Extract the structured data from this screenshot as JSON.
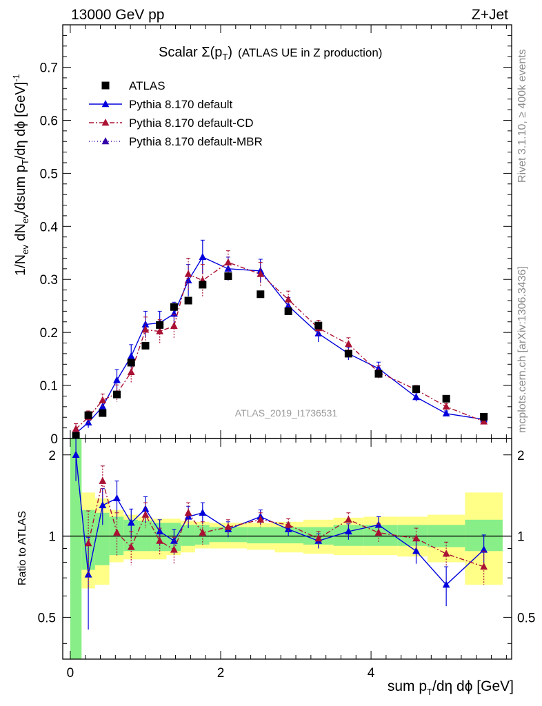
{
  "header": {
    "left": "13000 GeV pp",
    "right": "Z+Jet"
  },
  "side_labels": {
    "rivet": "Rivet 3.1.10, ≥ 400k events",
    "mcplots": "mcplots.cern.ch [arXiv:1306.3436]"
  },
  "chart_data": {
    "type": "scatter",
    "title_main": "Scalar Σ(p",
    "title_sub": "T",
    "title_close": ")",
    "title_paren": "(ATLAS UE in Z production)",
    "watermark": "ATLAS_2019_I1736531",
    "xlabel": "sum p_T/dη dϕ [GeV]",
    "xlabel_parts": {
      "a": "sum p",
      "sub": "T",
      "b": "/dη dϕ [GeV]"
    },
    "ylabel": "1/N_ev dN_ev/dsum p_T/dη dϕ [GeV]^-1",
    "ylabel_parts": {
      "a": "1/N",
      "s1": "ev",
      "b": " dN",
      "s2": "ev",
      "c": "/dsum p",
      "s3": "T",
      "d": "/dη dϕ  [GeV]",
      "sup": "-1"
    },
    "ratio_ylabel": "Ratio to ATLAS",
    "xlim": [
      -0.1,
      5.87
    ],
    "ylim": [
      0,
      0.78
    ],
    "ratio_ylim": [
      0.35,
      2.3
    ],
    "x_ticks": [
      0,
      2,
      4
    ],
    "x_tick_labels": [
      "0",
      "2",
      "4"
    ],
    "y_ticks": [
      0,
      0.1,
      0.2,
      0.3,
      0.4,
      0.5,
      0.6,
      0.7
    ],
    "y_tick_labels": [
      "0",
      "0.1",
      "0.2",
      "0.3",
      "0.4",
      "0.5",
      "0.6",
      "0.7"
    ],
    "ratio_ticks": [
      0.5,
      1,
      2
    ],
    "ratio_tick_labels": [
      "0.5",
      "1",
      "2"
    ],
    "legend": [
      {
        "label": "ATLAS",
        "color": "#000000",
        "marker": "square",
        "line": "none"
      },
      {
        "label": "Pythia 8.170 default",
        "color": "#0000dd",
        "marker": "triangle",
        "line": "solid"
      },
      {
        "label": "Pythia 8.170 default-CD",
        "color": "#aa1133",
        "marker": "triangle",
        "line": "dashdot"
      },
      {
        "label": "Pythia 8.170 default-MBR",
        "color": "#3300aa",
        "marker": "triangle",
        "line": "dotted"
      }
    ],
    "atlas": {
      "x": [
        0.075,
        0.24,
        0.43,
        0.62,
        0.81,
        1.0,
        1.19,
        1.38,
        1.57,
        1.76,
        2.1,
        2.53,
        2.9,
        3.3,
        3.7,
        4.1,
        4.6,
        5.0,
        5.5
      ],
      "y": [
        0.005,
        0.044,
        0.048,
        0.083,
        0.143,
        0.175,
        0.214,
        0.248,
        0.26,
        0.29,
        0.306,
        0.272,
        0.24,
        0.213,
        0.16,
        0.122,
        0.093,
        0.075,
        0.041
      ]
    },
    "series": [
      {
        "name": "Pythia 8.170 default",
        "color": "#0000dd",
        "dash": "",
        "y": [
          0.01,
          0.03,
          0.06,
          0.11,
          0.155,
          0.215,
          0.218,
          0.235,
          0.298,
          0.342,
          0.32,
          0.316,
          0.25,
          0.198,
          0.16,
          0.132,
          0.078,
          0.047,
          0.036
        ],
        "err": [
          0.008,
          0.01,
          0.012,
          0.02,
          0.022,
          0.025,
          0.022,
          0.022,
          0.03,
          0.032,
          0.022,
          0.022,
          0.016,
          0.016,
          0.012,
          0.012,
          0.008,
          0.005,
          0.004
        ],
        "ratio": [
          2.0,
          0.72,
          1.3,
          1.38,
          1.12,
          1.26,
          1.04,
          0.96,
          1.18,
          1.22,
          1.06,
          1.18,
          1.06,
          0.96,
          1.04,
          1.1,
          0.88,
          0.66,
          0.89
        ],
        "ratio_err": [
          0.4,
          0.27,
          0.2,
          0.22,
          0.14,
          0.14,
          0.11,
          0.1,
          0.11,
          0.11,
          0.07,
          0.07,
          0.06,
          0.06,
          0.07,
          0.08,
          0.09,
          0.11,
          0.12
        ]
      },
      {
        "name": "Pythia 8.170 default-CD",
        "color": "#aa1133",
        "dash": "7,3,2,3",
        "y": [
          0.018,
          0.04,
          0.072,
          0.085,
          0.125,
          0.205,
          0.202,
          0.212,
          0.31,
          0.298,
          0.332,
          0.31,
          0.262,
          0.208,
          0.178,
          0.125,
          0.092,
          0.06,
          0.032
        ],
        "err": [
          0.01,
          0.012,
          0.012,
          0.016,
          0.02,
          0.024,
          0.022,
          0.022,
          0.03,
          0.03,
          0.022,
          0.022,
          0.016,
          0.015,
          0.012,
          0.012,
          0.008,
          0.006,
          0.004
        ],
        "ratio": [
          null,
          0.94,
          1.6,
          1.03,
          0.91,
          1.2,
          0.96,
          0.89,
          1.22,
          1.03,
          1.08,
          1.15,
          1.1,
          0.98,
          1.15,
          1.03,
          0.98,
          0.86,
          0.77
        ],
        "ratio_err": [
          null,
          0.3,
          0.22,
          0.19,
          0.13,
          0.13,
          0.11,
          0.1,
          0.11,
          0.1,
          0.07,
          0.07,
          0.06,
          0.06,
          0.07,
          0.08,
          0.09,
          0.09,
          0.11
        ]
      },
      {
        "name": "Pythia 8.170 default-MBR",
        "color": "#3300aa",
        "dash": "1,3",
        "y": [],
        "err": [],
        "ratio": [],
        "ratio_err": []
      }
    ],
    "bands": {
      "edges": [
        0.0,
        0.15,
        0.33,
        0.52,
        0.71,
        0.9,
        1.09,
        1.28,
        1.47,
        1.66,
        1.85,
        2.35,
        2.72,
        3.1,
        3.5,
        3.9,
        4.35,
        4.75,
        5.25,
        5.75
      ],
      "green_lo": [
        0.35,
        0.75,
        0.78,
        0.85,
        0.88,
        0.88,
        0.88,
        0.88,
        0.92,
        0.93,
        0.95,
        0.94,
        0.94,
        0.93,
        0.92,
        0.92,
        0.92,
        0.91,
        0.88
      ],
      "green_hi": [
        2.3,
        1.25,
        1.22,
        1.18,
        1.15,
        1.14,
        1.12,
        1.12,
        1.1,
        1.1,
        1.08,
        1.08,
        1.08,
        1.08,
        1.1,
        1.1,
        1.1,
        1.1,
        1.15
      ],
      "yellow_lo": [
        0.35,
        0.64,
        0.66,
        0.8,
        0.82,
        0.82,
        0.82,
        0.85,
        0.87,
        0.9,
        0.9,
        0.89,
        0.87,
        0.86,
        0.85,
        0.85,
        0.84,
        0.8,
        0.66
      ],
      "yellow_hi": [
        2.3,
        1.45,
        1.38,
        1.25,
        1.2,
        1.18,
        1.16,
        1.16,
        1.14,
        1.13,
        1.12,
        1.12,
        1.13,
        1.15,
        1.17,
        1.18,
        1.18,
        1.2,
        1.45
      ]
    }
  }
}
